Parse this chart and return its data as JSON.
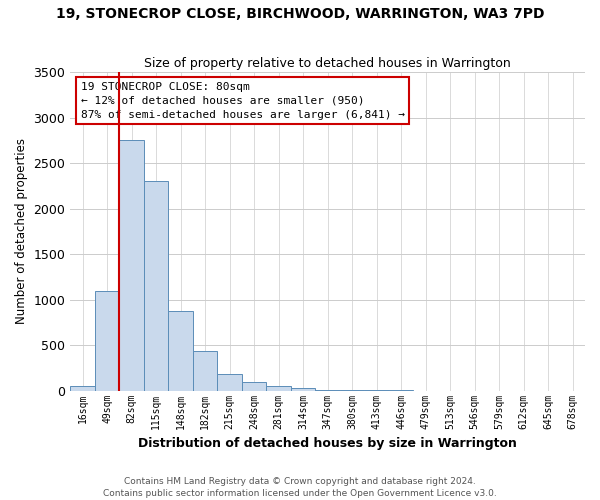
{
  "title": "19, STONECROP CLOSE, BIRCHWOOD, WARRINGTON, WA3 7PD",
  "subtitle": "Size of property relative to detached houses in Warrington",
  "xlabel": "Distribution of detached houses by size in Warrington",
  "ylabel": "Number of detached properties",
  "bin_labels": [
    "16sqm",
    "49sqm",
    "82sqm",
    "115sqm",
    "148sqm",
    "182sqm",
    "215sqm",
    "248sqm",
    "281sqm",
    "314sqm",
    "347sqm",
    "380sqm",
    "413sqm",
    "446sqm",
    "479sqm",
    "513sqm",
    "546sqm",
    "579sqm",
    "612sqm",
    "645sqm",
    "678sqm"
  ],
  "bar_values": [
    50,
    1100,
    2750,
    2300,
    880,
    430,
    185,
    100,
    55,
    30,
    10,
    5,
    3,
    2,
    1,
    1,
    0,
    0,
    0,
    0,
    0
  ],
  "bar_color": "#c9d9ec",
  "bar_edgecolor": "#5b8db8",
  "marker_line_color": "#cc0000",
  "annotation_text": "19 STONECROP CLOSE: 80sqm\n← 12% of detached houses are smaller (950)\n87% of semi-detached houses are larger (6,841) →",
  "annotation_box_edgecolor": "#cc0000",
  "ylim": [
    0,
    3500
  ],
  "yticks": [
    0,
    500,
    1000,
    1500,
    2000,
    2500,
    3000,
    3500
  ],
  "footer_line1": "Contains HM Land Registry data © Crown copyright and database right 2024.",
  "footer_line2": "Contains public sector information licensed under the Open Government Licence v3.0.",
  "background_color": "#ffffff",
  "grid_color": "#cccccc"
}
